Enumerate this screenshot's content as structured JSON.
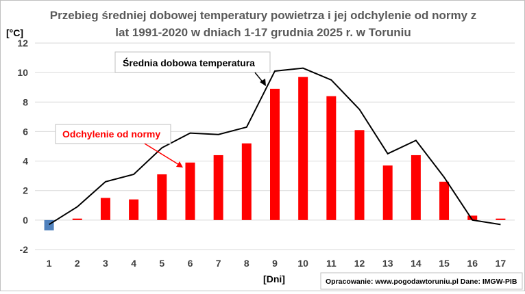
{
  "chart_data": {
    "type": "bar+line",
    "title_lines": [
      "Przebieg średniej dobowej temperatury powietrza i jej odchylenie od normy z",
      "lat 1991-2020 w dniach 1-17 grudnia 2025 r. w Toruniu"
    ],
    "ylabel": "[°C]",
    "xlabel": "[Dni]",
    "ylim": [
      -2,
      12
    ],
    "yticks": [
      -2,
      0,
      2,
      4,
      6,
      8,
      10,
      12
    ],
    "grid": true,
    "categories": [
      "1",
      "2",
      "3",
      "4",
      "5",
      "6",
      "7",
      "8",
      "9",
      "10",
      "11",
      "12",
      "13",
      "14",
      "15",
      "16",
      "17"
    ],
    "series": [
      {
        "name": "Odchylenie od normy",
        "kind": "bar",
        "color": "#ff0000",
        "negative_color": "#4f81bd",
        "values": [
          -0.7,
          0.1,
          1.5,
          1.4,
          3.1,
          3.9,
          4.4,
          5.2,
          8.9,
          9.7,
          8.4,
          6.1,
          3.7,
          4.4,
          2.6,
          0.3,
          0.1
        ]
      },
      {
        "name": "Średnia dobowa temperatura",
        "kind": "line",
        "color": "#000000",
        "values": [
          -0.3,
          0.9,
          2.6,
          3.1,
          4.9,
          5.9,
          5.8,
          6.3,
          10.1,
          10.3,
          9.5,
          7.5,
          4.5,
          5.4,
          2.9,
          0.0,
          -0.3
        ]
      }
    ],
    "annotations": {
      "line_label": "Średnia dobowa temperatura",
      "bar_label": "Odchylenie od normy",
      "source": "Opracowanie: www.pogodawtoruniu.pl  Dane: IMGW-PIB"
    }
  }
}
